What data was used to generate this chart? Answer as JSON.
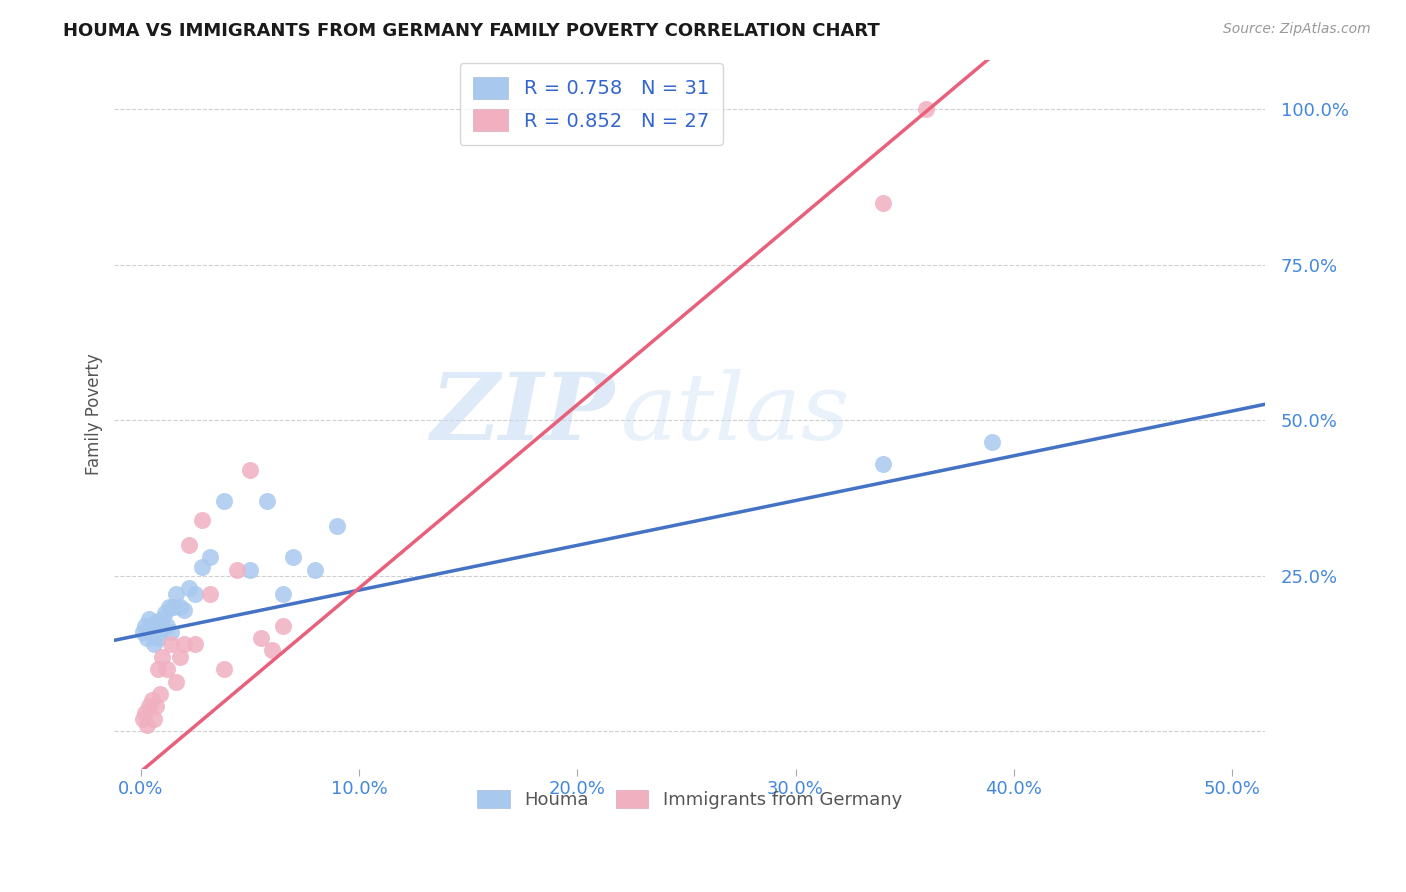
{
  "title": "HOUMA VS IMMIGRANTS FROM GERMANY FAMILY POVERTY CORRELATION CHART",
  "source": "Source: ZipAtlas.com",
  "ylabel_label": "Family Poverty",
  "x_ticks": [
    0.0,
    0.1,
    0.2,
    0.3,
    0.4,
    0.5
  ],
  "x_tick_labels": [
    "0.0%",
    "10.0%",
    "20.0%",
    "30.0%",
    "40.0%",
    "50.0%"
  ],
  "y_ticks": [
    0.0,
    0.25,
    0.5,
    0.75,
    1.0
  ],
  "y_tick_labels": [
    "",
    "25.0%",
    "50.0%",
    "75.0%",
    "100.0%"
  ],
  "xlim": [
    -0.012,
    0.515
  ],
  "ylim": [
    -0.06,
    1.08
  ],
  "houma_color": "#A8C8EE",
  "germany_color": "#F0B0C0",
  "houma_line_color": "#4472C4",
  "germany_line_color": "#E8607A",
  "houma_R": 0.758,
  "houma_N": 31,
  "germany_R": 0.852,
  "germany_N": 27,
  "watermark_zip": "ZIP",
  "watermark_atlas": "atlas",
  "background_color": "#ffffff",
  "grid_color": "#D0D0D0",
  "houma_line_slope": 0.72,
  "houma_line_intercept": 0.155,
  "germany_line_slope": 2.95,
  "germany_line_intercept": -0.065,
  "houma_x": [
    0.001,
    0.002,
    0.003,
    0.004,
    0.005,
    0.006,
    0.007,
    0.008,
    0.009,
    0.01,
    0.011,
    0.012,
    0.013,
    0.014,
    0.015,
    0.016,
    0.018,
    0.02,
    0.022,
    0.025,
    0.028,
    0.032,
    0.038,
    0.05,
    0.058,
    0.065,
    0.07,
    0.08,
    0.09,
    0.34,
    0.39
  ],
  "houma_y": [
    0.16,
    0.17,
    0.15,
    0.18,
    0.16,
    0.14,
    0.175,
    0.15,
    0.16,
    0.18,
    0.19,
    0.17,
    0.2,
    0.16,
    0.2,
    0.22,
    0.2,
    0.195,
    0.23,
    0.22,
    0.265,
    0.28,
    0.37,
    0.26,
    0.37,
    0.22,
    0.28,
    0.26,
    0.33,
    0.43,
    0.465
  ],
  "germany_x": [
    0.001,
    0.002,
    0.003,
    0.004,
    0.005,
    0.006,
    0.007,
    0.008,
    0.009,
    0.01,
    0.012,
    0.014,
    0.016,
    0.018,
    0.02,
    0.022,
    0.025,
    0.028,
    0.032,
    0.038,
    0.044,
    0.05,
    0.055,
    0.06,
    0.065,
    0.34,
    0.36
  ],
  "germany_y": [
    0.02,
    0.03,
    0.01,
    0.04,
    0.05,
    0.02,
    0.04,
    0.1,
    0.06,
    0.12,
    0.1,
    0.14,
    0.08,
    0.12,
    0.14,
    0.3,
    0.14,
    0.34,
    0.22,
    0.1,
    0.26,
    0.42,
    0.15,
    0.13,
    0.17,
    0.85,
    1.0
  ]
}
